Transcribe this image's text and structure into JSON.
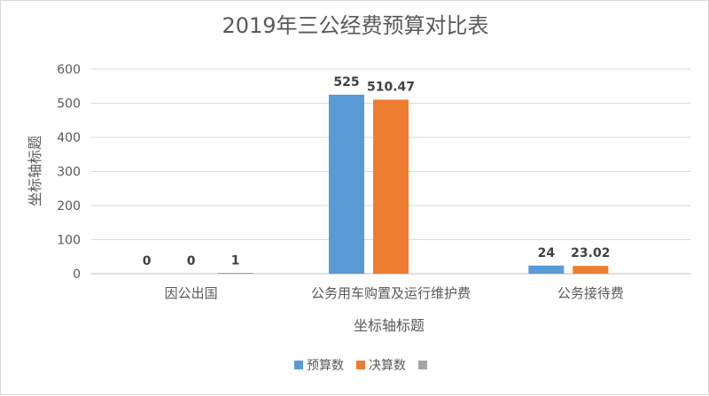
{
  "chart_data": {
    "type": "bar",
    "title": "2019年三公经费预算对比表",
    "xlabel": "坐标轴标题",
    "ylabel": "坐标轴标题",
    "categories": [
      "因公出国",
      "公务用车购置及运行维护费",
      "公务接待费"
    ],
    "series": [
      {
        "name": "预算数",
        "values": [
          0,
          525,
          24
        ],
        "labels": [
          "0",
          "525",
          "24"
        ],
        "color": "#5b9bd5"
      },
      {
        "name": "决算数",
        "values": [
          0,
          510.47,
          23.02
        ],
        "labels": [
          "0",
          "510.47",
          "23.02"
        ],
        "color": "#ed7d31"
      },
      {
        "name": "",
        "values": [
          1,
          null,
          null
        ],
        "labels": [
          "1",
          "",
          ""
        ],
        "color": "#a5a5a5"
      }
    ],
    "ylim": [
      0,
      600
    ],
    "yticks": [
      0,
      100,
      200,
      300,
      400,
      500,
      600
    ],
    "grid": true,
    "legend_position": "bottom"
  }
}
